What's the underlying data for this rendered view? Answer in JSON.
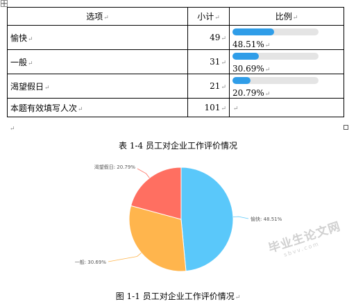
{
  "table": {
    "headers": [
      "选项",
      "小计",
      "比例"
    ],
    "rows": [
      {
        "option": "愉快",
        "count": "49",
        "percent_label": "48.51%",
        "fraction": 0.4851
      },
      {
        "option": "一般",
        "count": "31",
        "percent_label": "30.69%",
        "fraction": 0.3069
      },
      {
        "option": "渴望假日",
        "count": "21",
        "percent_label": "20.79%",
        "fraction": 0.2079
      }
    ],
    "total": {
      "label": "本题有效填写人次",
      "count": "101"
    }
  },
  "table_caption": "表 1-4  员工对企业工作评价情况",
  "figure_caption": "图 1-1 员工对企业工作评价情况",
  "watermark": {
    "main": "毕业生论文网",
    "sub": "sbvv.com"
  },
  "chart_data": {
    "type": "pie",
    "slices": [
      {
        "label": "愉快: 48.51%",
        "value": 48.51,
        "color": "#5ac8fa"
      },
      {
        "label": "一般: 30.69%",
        "value": 30.69,
        "color": "#ffb54d"
      },
      {
        "label": "渴望假日: 20.79%",
        "value": 20.79,
        "color": "#ff6f61"
      }
    ]
  }
}
